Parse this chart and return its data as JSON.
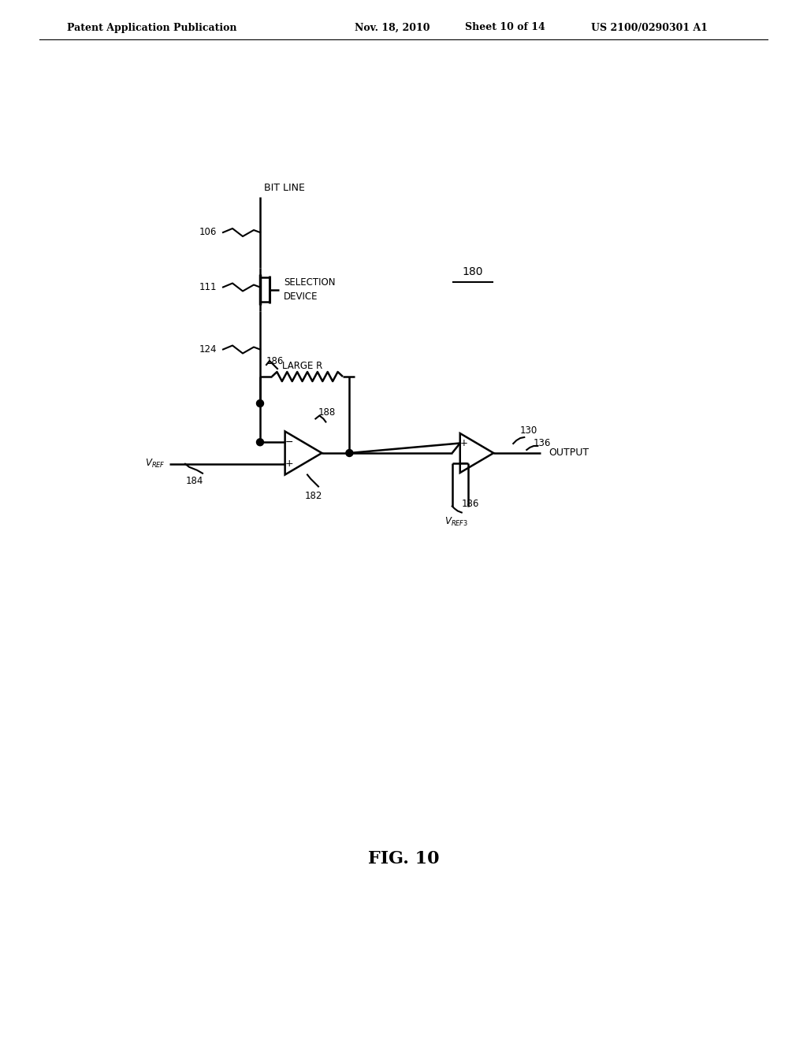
{
  "bg_color": "#ffffff",
  "line_color": "#000000",
  "header_text": "Patent Application Publication    Nov. 18, 2010  Sheet 10 of 14    US 2100/0290301 A1",
  "fig_label": "FIG. 10",
  "title_line1": "Patent Application Publication",
  "title_date": "Nov. 18, 2010",
  "title_sheet": "Sheet 10 of 14",
  "title_patent": "US 2100/0290301 A1"
}
